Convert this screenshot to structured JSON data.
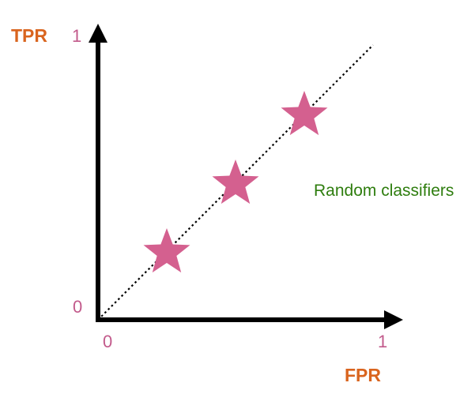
{
  "colors": {
    "axis": "#000000",
    "axis_title": "#d9641e",
    "tick_label": "#c25a8b",
    "point": "#d4608f",
    "annotation": "#2e7d0e",
    "diagonal": "#000000"
  },
  "chart_data": {
    "type": "scatter",
    "xlabel": "FPR",
    "ylabel": "TPR",
    "xlim": [
      0,
      1
    ],
    "ylim": [
      0,
      1
    ],
    "grid": false,
    "x_ticks": [
      "0",
      "1"
    ],
    "y_ticks": [
      "0",
      "1"
    ],
    "marker": "star",
    "line_style": "dotted",
    "points": [
      {
        "x": 0.25,
        "y": 0.25
      },
      {
        "x": 0.5,
        "y": 0.5
      },
      {
        "x": 0.75,
        "y": 0.75
      }
    ],
    "diagonal": {
      "from": [
        0,
        0
      ],
      "to": [
        1,
        1
      ]
    },
    "annotations": [
      {
        "text": "Random classifiers",
        "x": 1.0,
        "y": 0.5
      }
    ]
  }
}
